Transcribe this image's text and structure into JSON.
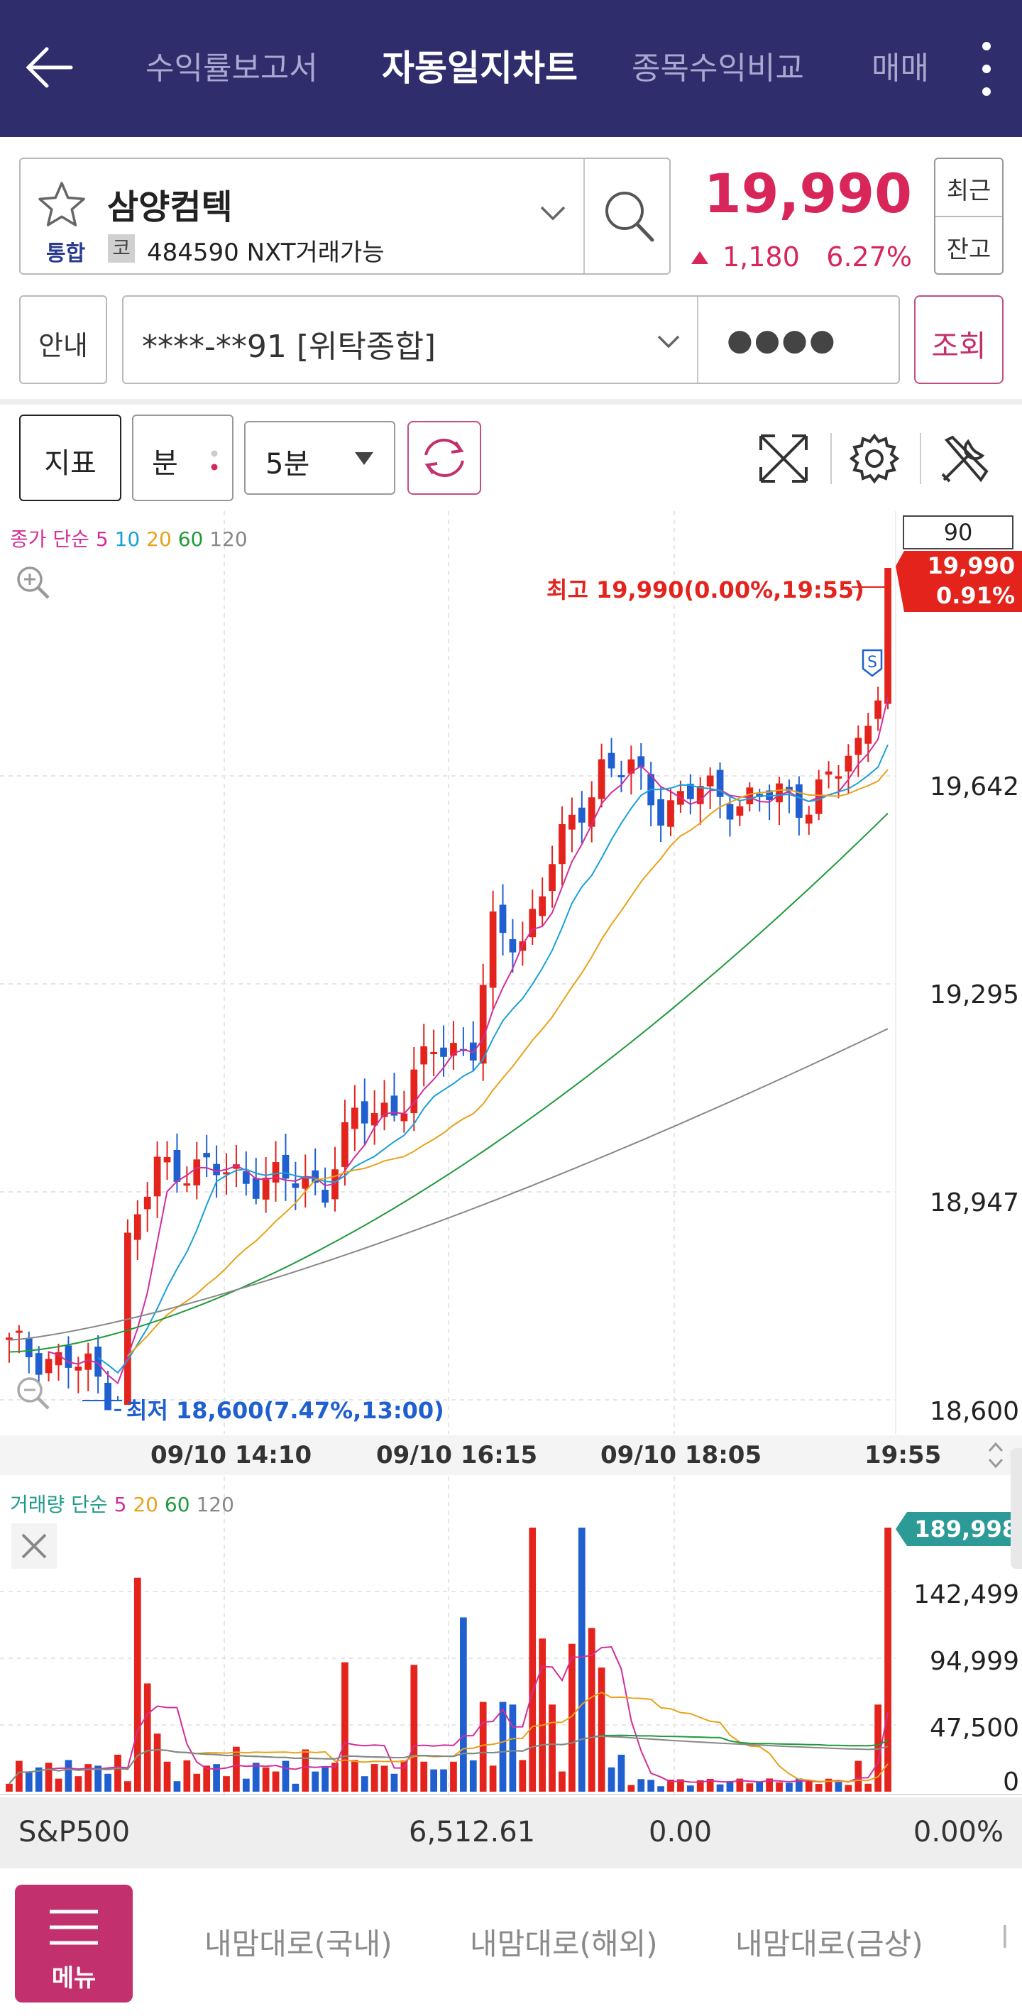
{
  "topnav": {
    "tabs": [
      "수익률보고서",
      "자동일지차트",
      "종목수익비교",
      "매매"
    ],
    "active_tab": "자동일지차트"
  },
  "stock": {
    "name": "삼양컴텍",
    "market_badge": "통합",
    "exchange_badge": "코",
    "code_info": "484590 NXT거래가능",
    "price": "19,990",
    "change": "1,180",
    "change_pct": "6.27%",
    "recent_label": "최근",
    "balance_label": "잔고"
  },
  "account": {
    "guide_label": "안내",
    "account_number": "****-**91 [위탁종합]",
    "password_mask": "●●●●",
    "query_label": "조회"
  },
  "toolbar": {
    "indicator_label": "지표",
    "period_label": "분",
    "interval_value": "5분"
  },
  "price_chart": {
    "legend": {
      "prefix": "종가 단순",
      "ma": [
        "5",
        "10",
        "20",
        "60",
        "120"
      ]
    },
    "count_box": "90",
    "last_price_tag": "19,990",
    "last_price_pct": "0.91%",
    "high_annotation": "최고 19,990(0.00%,19:55)",
    "low_annotation": "최저 18,600(7.47%,13:00)",
    "signal_marker": "S",
    "y_ticks": [
      "19,642",
      "19,295",
      "18,947",
      "18,600"
    ],
    "x_ticks": [
      "09/10 14:10",
      "09/10 16:15",
      "09/10 18:05",
      "19:55"
    ]
  },
  "volume_chart": {
    "legend": {
      "prefix": "거래량 단순",
      "ma": [
        "5",
        "20",
        "60",
        "120"
      ]
    },
    "last_volume_tag": "189,998",
    "y_ticks": [
      "142,499",
      "94,999",
      "47,500",
      "0"
    ]
  },
  "colors": {
    "up": "#e3231c",
    "down": "#1f5fd0",
    "ma5": "#d22e9a",
    "ma10": "#1aa0d8",
    "ma20": "#e8a21a",
    "ma60": "#1f9a3a",
    "ma120": "#888888",
    "header_bg": "#2f2d6b",
    "accent": "#c2306e"
  },
  "index_bar": {
    "name": "S&P500",
    "value": "6,512.61",
    "change": "0.00",
    "change_pct": "0.00%"
  },
  "bottom_bar": {
    "menu_label": "메뉴",
    "tabs": [
      "내맘대로(국내)",
      "내맘대로(해외)",
      "내맘대로(금상)"
    ]
  }
}
